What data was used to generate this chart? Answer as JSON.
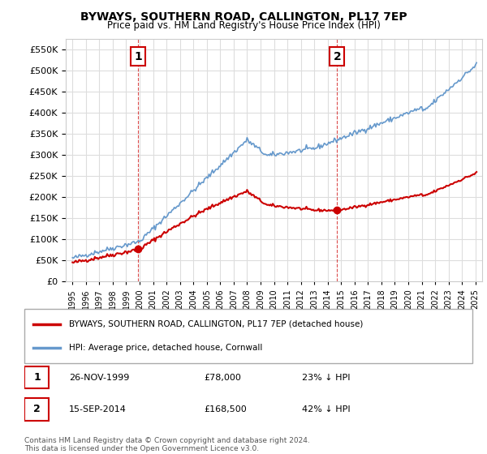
{
  "title": "BYWAYS, SOUTHERN ROAD, CALLINGTON, PL17 7EP",
  "subtitle": "Price paid vs. HM Land Registry's House Price Index (HPI)",
  "legend_entry1": "BYWAYS, SOUTHERN ROAD, CALLINGTON, PL17 7EP (detached house)",
  "legend_entry2": "HPI: Average price, detached house, Cornwall",
  "footnote": "Contains HM Land Registry data © Crown copyright and database right 2024.\nThis data is licensed under the Open Government Licence v3.0.",
  "table_row1_date": "26-NOV-1999",
  "table_row1_price": "£78,000",
  "table_row1_hpi": "23% ↓ HPI",
  "table_row2_date": "15-SEP-2014",
  "table_row2_price": "£168,500",
  "table_row2_hpi": "42% ↓ HPI",
  "sale1_year": 1999.9,
  "sale1_price": 78000,
  "sale2_year": 2014.71,
  "sale2_price": 168500,
  "red_color": "#cc0000",
  "blue_color": "#6699cc",
  "background_color": "#ffffff",
  "grid_color": "#dddddd",
  "ylim": [
    0,
    575000
  ],
  "xlim_start": 1994.5,
  "xlim_end": 2025.5
}
